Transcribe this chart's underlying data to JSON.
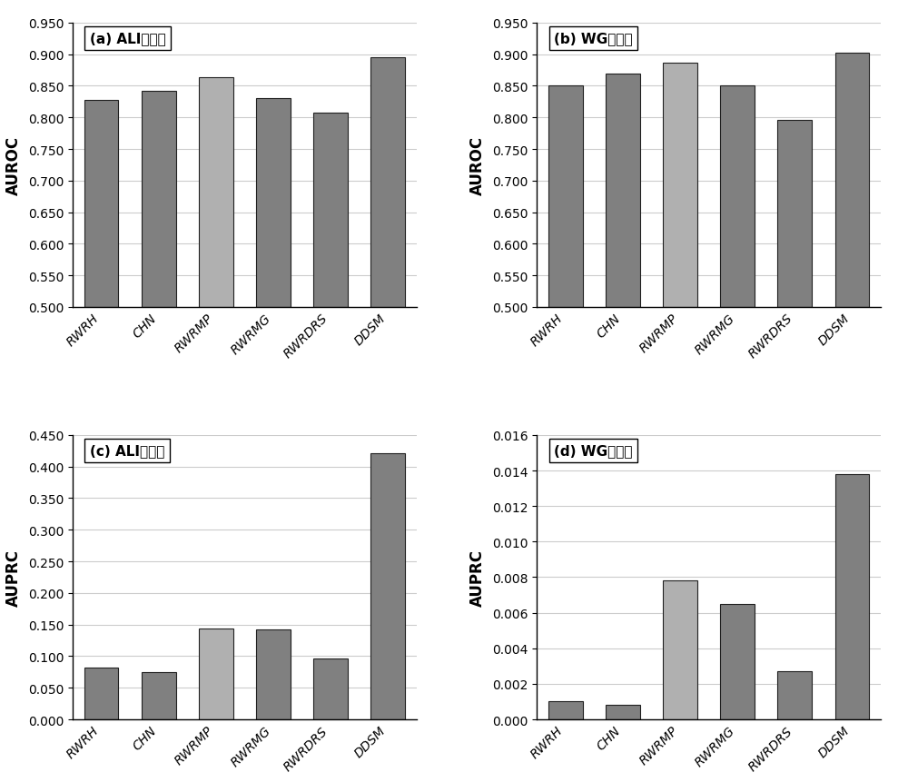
{
  "categories": [
    "RWRH",
    "CHN",
    "RWRMP",
    "RWRMG",
    "RWRDRS",
    "DDSM"
  ],
  "auroc_a": [
    0.828,
    0.842,
    0.864,
    0.831,
    0.807,
    0.895
  ],
  "auroc_b": [
    0.85,
    0.869,
    0.886,
    0.85,
    0.796,
    0.903
  ],
  "auprc_c": [
    0.082,
    0.075,
    0.144,
    0.143,
    0.096,
    0.421
  ],
  "auprc_d": [
    0.001,
    0.0008,
    0.0078,
    0.0065,
    0.0027,
    0.0138
  ],
  "title_a": "(a) ALI控制集",
  "title_b": "(b) WG控制集",
  "title_c": "(c) ALI控制集",
  "title_d": "(d) WG控制集",
  "ylabel_auroc": "AUROC",
  "ylabel_auprc": "AUPRC",
  "ylim_auroc": [
    0.5,
    0.95
  ],
  "yticks_auroc": [
    0.5,
    0.55,
    0.6,
    0.65,
    0.7,
    0.75,
    0.8,
    0.85,
    0.9,
    0.95
  ],
  "ylim_auprc_c": [
    0.0,
    0.45
  ],
  "yticks_auprc_c": [
    0.0,
    0.05,
    0.1,
    0.15,
    0.2,
    0.25,
    0.3,
    0.35,
    0.4,
    0.45
  ],
  "ylim_auprc_d": [
    0.0,
    0.016
  ],
  "yticks_auprc_d": [
    0.0,
    0.002,
    0.004,
    0.006,
    0.008,
    0.01,
    0.012,
    0.014,
    0.016
  ],
  "bar_color_dark": "#808080",
  "bar_color_light": "#b0b0b0",
  "bar_edge_color": "#202020",
  "background_color": "#ffffff",
  "grid_color": "#cccccc"
}
